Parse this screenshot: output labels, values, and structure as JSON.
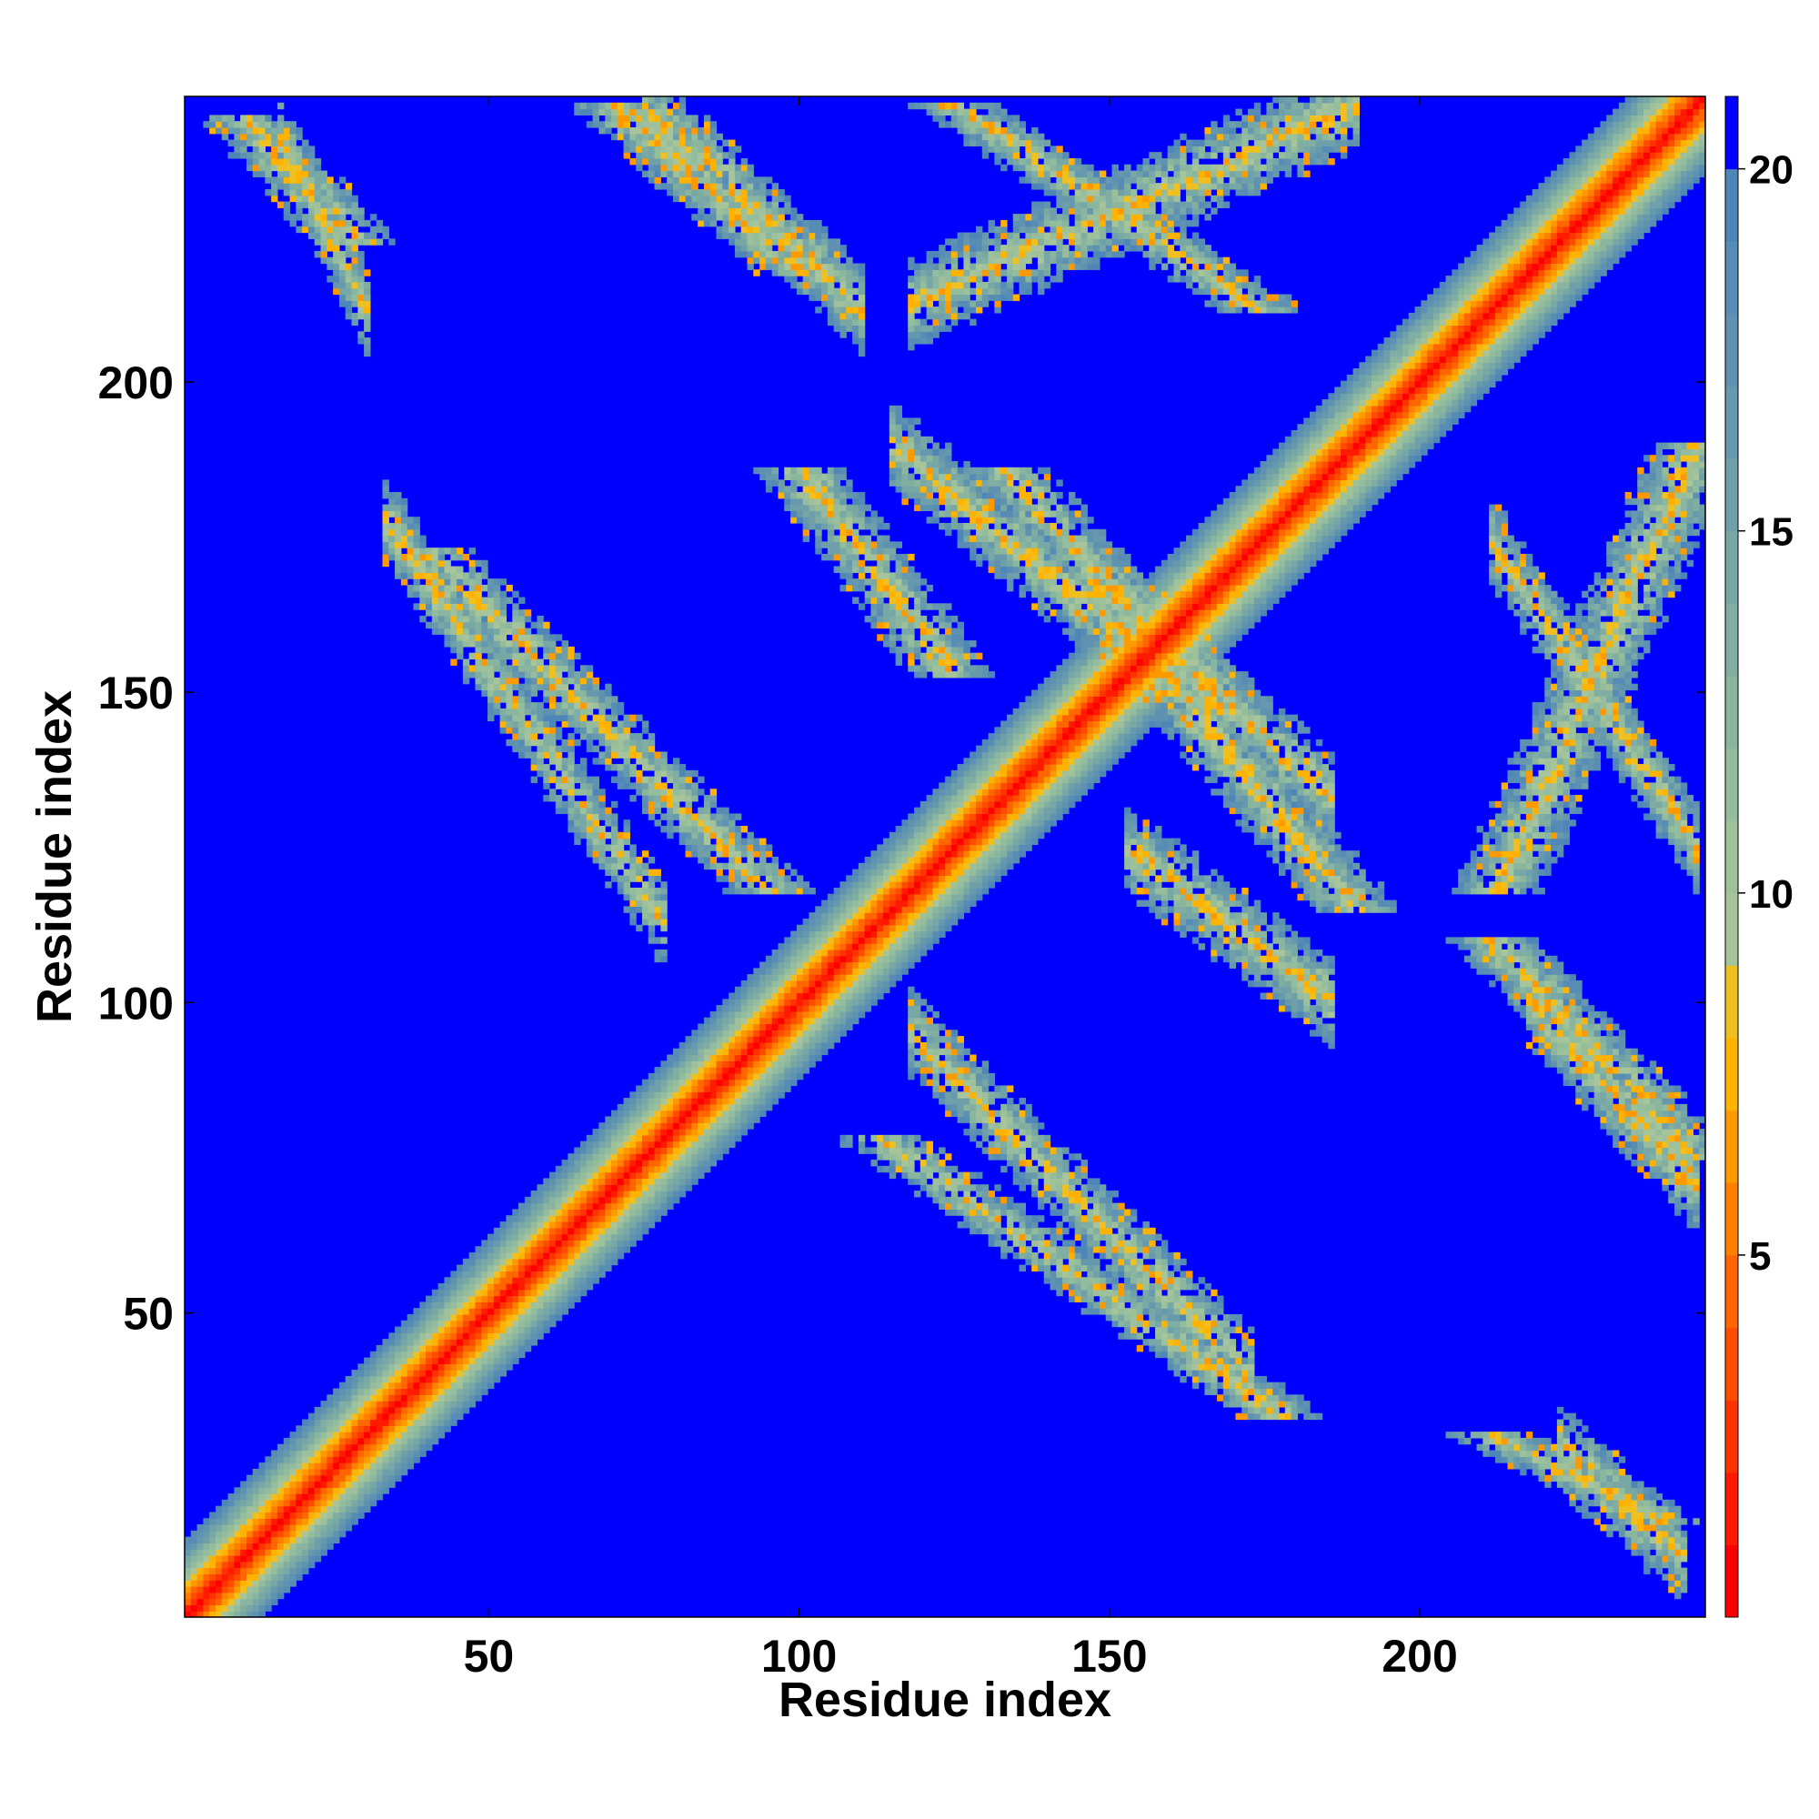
{
  "chart_data": {
    "type": "heatmap",
    "title": "",
    "xlabel": "Residue index",
    "ylabel": "Residue index",
    "n_residues": 246,
    "xlim": [
      1,
      246
    ],
    "ylim": [
      1,
      246
    ],
    "x_ticks": [
      50,
      100,
      150,
      200
    ],
    "y_ticks": [
      50,
      100,
      150,
      200
    ],
    "x_tick_labels": [
      "50",
      "100",
      "150",
      "200"
    ],
    "y_tick_labels": [
      "50",
      "100",
      "150",
      "200"
    ],
    "grid": false,
    "colorbar": {
      "position": "right",
      "range": [
        0,
        21
      ],
      "ticks": [
        5,
        10,
        15,
        20
      ],
      "tick_labels": [
        "5",
        "10",
        "15",
        "20"
      ],
      "levels": [
        {
          "min": 0,
          "max": 1,
          "color": "#ff0000"
        },
        {
          "min": 1,
          "max": 2,
          "color": "#ff1a00"
        },
        {
          "min": 2,
          "max": 3,
          "color": "#ff3300"
        },
        {
          "min": 3,
          "max": 4,
          "color": "#ff4d00"
        },
        {
          "min": 4,
          "max": 5,
          "color": "#ff6600"
        },
        {
          "min": 5,
          "max": 6,
          "color": "#ff7f00"
        },
        {
          "min": 6,
          "max": 7,
          "color": "#ff9900"
        },
        {
          "min": 7,
          "max": 8,
          "color": "#ffb300"
        },
        {
          "min": 8,
          "max": 9,
          "color": "#f0c020"
        },
        {
          "min": 9,
          "max": 10,
          "color": "#a8c49a"
        },
        {
          "min": 10,
          "max": 11,
          "color": "#9ec19b"
        },
        {
          "min": 11,
          "max": 12,
          "color": "#94bd9d"
        },
        {
          "min": 12,
          "max": 13,
          "color": "#8ab59f"
        },
        {
          "min": 13,
          "max": 14,
          "color": "#80aea2"
        },
        {
          "min": 14,
          "max": 15,
          "color": "#78a8a6"
        },
        {
          "min": 15,
          "max": 16,
          "color": "#6fa0aa"
        },
        {
          "min": 16,
          "max": 17,
          "color": "#6699ad"
        },
        {
          "min": 17,
          "max": 18,
          "color": "#5f92b0"
        },
        {
          "min": 18,
          "max": 19,
          "color": "#578cb4"
        },
        {
          "min": 19,
          "max": 20,
          "color": "#4f86b8"
        },
        {
          "min": 20,
          "max": 21,
          "color": "#0000ff"
        }
      ]
    },
    "structure": {
      "diagonal": {
        "min_distance": 0,
        "band_half_width": 12
      },
      "contact_bands": [
        {
          "a": [
            16,
            30
          ],
          "b": [
            212,
            240
          ],
          "direction": "anti"
        },
        {
          "a": [
            33,
            78
          ],
          "b": [
            113,
            178
          ],
          "direction": "anti"
        },
        {
          "a": [
            75,
            110
          ],
          "b": [
            212,
            245
          ],
          "direction": "anti"
        },
        {
          "a": [
            115,
            160
          ],
          "b": [
            153,
            190
          ],
          "direction": "anti"
        },
        {
          "a": [
            118,
            173
          ],
          "b": [
            40,
            95
          ],
          "direction": "anti"
        },
        {
          "a": [
            118,
            190
          ],
          "b": [
            213,
            245
          ],
          "direction": "parallel"
        },
        {
          "a": [
            146,
            186
          ],
          "b": [
            133,
            170
          ],
          "direction": "anti"
        },
        {
          "a": [
            153,
            186
          ],
          "b": [
            100,
            125
          ],
          "direction": "anti"
        },
        {
          "a": [
            212,
            245
          ],
          "b": [
            125,
            175
          ],
          "direction": "anti"
        },
        {
          "a": [
            218,
            245
          ],
          "b": [
            70,
            100
          ],
          "direction": "anti"
        },
        {
          "a": [
            223,
            243
          ],
          "b": [
            10,
            28
          ],
          "direction": "anti"
        }
      ]
    }
  }
}
